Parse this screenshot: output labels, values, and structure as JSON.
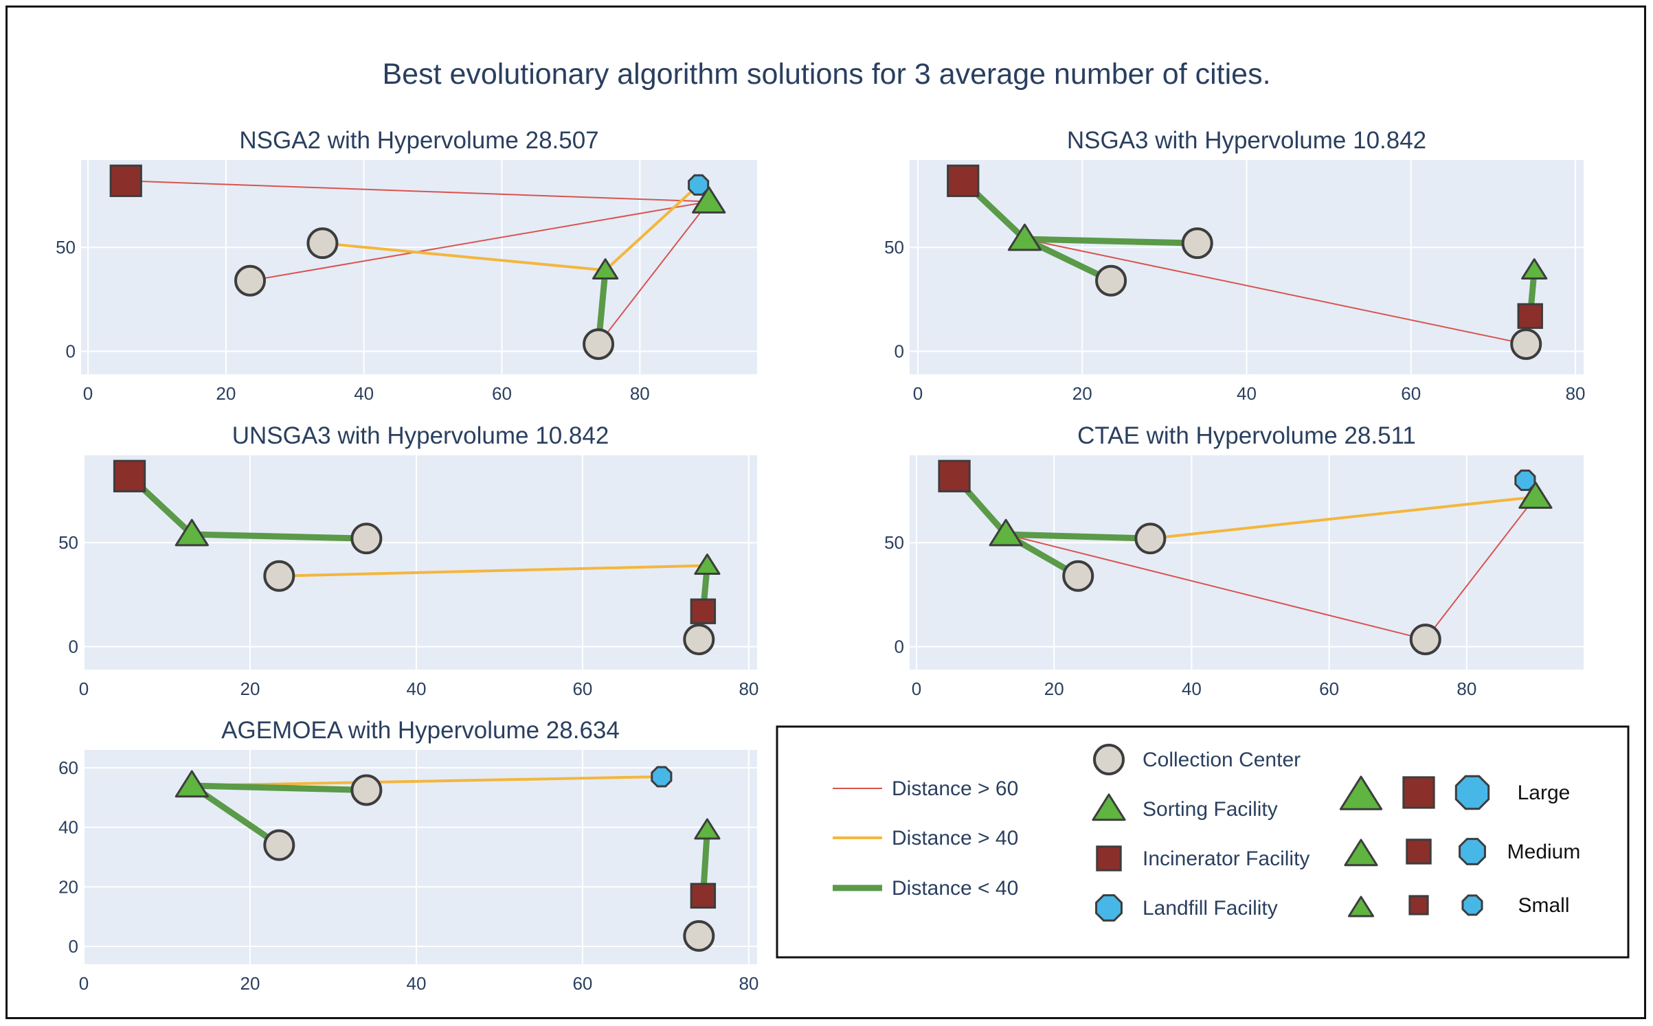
{
  "title": "Best evolutionary algorithm solutions for 3 average number of cities.",
  "colors": {
    "plot_bg": "#e5ecf6",
    "grid": "#ffffff",
    "text": "#2a3f5f",
    "collection": "#d9d5cc",
    "sorting": "#5fb53f",
    "incinerator": "#8b2f2a",
    "landfill": "#47b7e8",
    "dist_gt60": "#d9534f",
    "dist_gt40": "#f4b63c",
    "dist_lt40": "#5a9a48",
    "marker_edge": "#3d3d3d"
  },
  "chart_data": [
    {
      "type": "scatter",
      "title": "NSGA2 with Hypervolume 28.507",
      "xlim": [
        -1,
        97
      ],
      "ylim": [
        -11,
        92
      ],
      "xticks": [
        0,
        20,
        40,
        60,
        80
      ],
      "yticks": [
        0,
        50
      ],
      "grid": true,
      "points": [
        {
          "kind": "incinerator",
          "size": "large",
          "x": 5.5,
          "y": 82
        },
        {
          "kind": "landfill",
          "size": "small",
          "x": 88.5,
          "y": 80
        },
        {
          "kind": "sorting",
          "size": "medium",
          "x": 90,
          "y": 72
        },
        {
          "kind": "collection",
          "x": 34,
          "y": 52
        },
        {
          "kind": "collection",
          "x": 23.5,
          "y": 34
        },
        {
          "kind": "sorting",
          "size": "small",
          "x": 75,
          "y": 39
        },
        {
          "kind": "collection",
          "x": 74,
          "y": 3.5
        }
      ],
      "links": [
        {
          "class": "gt60",
          "from": [
            5.5,
            82
          ],
          "to": [
            90,
            72
          ]
        },
        {
          "class": "gt60",
          "from": [
            23.5,
            34
          ],
          "to": [
            90,
            72
          ]
        },
        {
          "class": "gt60",
          "from": [
            74,
            3.5
          ],
          "to": [
            90,
            72
          ]
        },
        {
          "class": "gt40",
          "from": [
            34,
            52
          ],
          "to": [
            75,
            39
          ]
        },
        {
          "class": "gt40",
          "from": [
            75,
            39
          ],
          "to": [
            88.5,
            80
          ]
        },
        {
          "class": "lt40",
          "from": [
            74,
            3.5
          ],
          "to": [
            75,
            39
          ]
        }
      ]
    },
    {
      "type": "scatter",
      "title": "NSGA3 with Hypervolume 10.842",
      "xlim": [
        -1,
        81
      ],
      "ylim": [
        -11,
        92
      ],
      "xticks": [
        0,
        20,
        40,
        60,
        80
      ],
      "yticks": [
        0,
        50
      ],
      "grid": true,
      "points": [
        {
          "kind": "incinerator",
          "size": "large",
          "x": 5.5,
          "y": 82
        },
        {
          "kind": "sorting",
          "size": "medium",
          "x": 13,
          "y": 54
        },
        {
          "kind": "collection",
          "x": 34,
          "y": 52
        },
        {
          "kind": "collection",
          "x": 23.5,
          "y": 34
        },
        {
          "kind": "sorting",
          "size": "small",
          "x": 75,
          "y": 39
        },
        {
          "kind": "incinerator",
          "size": "medium",
          "x": 74.5,
          "y": 17
        },
        {
          "kind": "collection",
          "x": 74,
          "y": 3.5
        }
      ],
      "links": [
        {
          "class": "gt60",
          "from": [
            13,
            54
          ],
          "to": [
            74,
            3.5
          ]
        },
        {
          "class": "lt40",
          "from": [
            5.5,
            82
          ],
          "to": [
            13,
            54
          ]
        },
        {
          "class": "lt40",
          "from": [
            13,
            54
          ],
          "to": [
            34,
            52
          ]
        },
        {
          "class": "lt40",
          "from": [
            13,
            54
          ],
          "to": [
            23.5,
            34
          ]
        },
        {
          "class": "lt40",
          "from": [
            74.5,
            17
          ],
          "to": [
            75,
            39
          ]
        }
      ]
    },
    {
      "type": "scatter",
      "title": "UNSGA3 with Hypervolume 10.842",
      "xlim": [
        0,
        81
      ],
      "ylim": [
        -11,
        92
      ],
      "xticks": [
        0,
        20,
        40,
        60,
        80
      ],
      "yticks": [
        0,
        50
      ],
      "grid": true,
      "points": [
        {
          "kind": "incinerator",
          "size": "large",
          "x": 5.5,
          "y": 82
        },
        {
          "kind": "sorting",
          "size": "medium",
          "x": 13,
          "y": 54
        },
        {
          "kind": "collection",
          "x": 34,
          "y": 52
        },
        {
          "kind": "collection",
          "x": 23.5,
          "y": 34
        },
        {
          "kind": "sorting",
          "size": "small",
          "x": 75,
          "y": 39
        },
        {
          "kind": "incinerator",
          "size": "medium",
          "x": 74.5,
          "y": 17
        },
        {
          "kind": "collection",
          "x": 74,
          "y": 3.5
        }
      ],
      "links": [
        {
          "class": "gt40",
          "from": [
            23.5,
            34
          ],
          "to": [
            75,
            39
          ]
        },
        {
          "class": "lt40",
          "from": [
            5.5,
            82
          ],
          "to": [
            13,
            54
          ]
        },
        {
          "class": "lt40",
          "from": [
            13,
            54
          ],
          "to": [
            34,
            52
          ]
        },
        {
          "class": "lt40",
          "from": [
            74.5,
            17
          ],
          "to": [
            75,
            39
          ]
        }
      ]
    },
    {
      "type": "scatter",
      "title": "CTAE with Hypervolume 28.511",
      "xlim": [
        -1,
        97
      ],
      "ylim": [
        -11,
        92
      ],
      "xticks": [
        0,
        20,
        40,
        60,
        80
      ],
      "yticks": [
        0,
        50
      ],
      "grid": true,
      "points": [
        {
          "kind": "incinerator",
          "size": "large",
          "x": 5.5,
          "y": 82
        },
        {
          "kind": "landfill",
          "size": "small",
          "x": 88.5,
          "y": 80
        },
        {
          "kind": "sorting",
          "size": "medium",
          "x": 90,
          "y": 72
        },
        {
          "kind": "sorting",
          "size": "medium",
          "x": 13,
          "y": 54
        },
        {
          "kind": "collection",
          "x": 34,
          "y": 52
        },
        {
          "kind": "collection",
          "x": 23.5,
          "y": 34
        },
        {
          "kind": "collection",
          "x": 74,
          "y": 3.5
        }
      ],
      "links": [
        {
          "class": "gt60",
          "from": [
            13,
            54
          ],
          "to": [
            74,
            3.5
          ]
        },
        {
          "class": "gt60",
          "from": [
            74,
            3.5
          ],
          "to": [
            90,
            72
          ]
        },
        {
          "class": "gt40",
          "from": [
            34,
            52
          ],
          "to": [
            90,
            72
          ]
        },
        {
          "class": "lt40",
          "from": [
            5.5,
            82
          ],
          "to": [
            13,
            54
          ]
        },
        {
          "class": "lt40",
          "from": [
            13,
            54
          ],
          "to": [
            34,
            52
          ]
        },
        {
          "class": "lt40",
          "from": [
            13,
            54
          ],
          "to": [
            23.5,
            34
          ]
        }
      ]
    },
    {
      "type": "scatter",
      "title": "AGEMOEA with Hypervolume 28.634",
      "xlim": [
        0,
        81
      ],
      "ylim": [
        -6,
        66
      ],
      "xticks": [
        0,
        20,
        40,
        60,
        80
      ],
      "yticks": [
        0,
        20,
        40,
        60
      ],
      "grid": true,
      "points": [
        {
          "kind": "sorting",
          "size": "medium",
          "x": 13,
          "y": 54
        },
        {
          "kind": "collection",
          "x": 34,
          "y": 52.5
        },
        {
          "kind": "landfill",
          "size": "small",
          "x": 69.5,
          "y": 57
        },
        {
          "kind": "collection",
          "x": 23.5,
          "y": 34
        },
        {
          "kind": "sorting",
          "size": "small",
          "x": 75,
          "y": 39
        },
        {
          "kind": "incinerator",
          "size": "medium",
          "x": 74.5,
          "y": 17
        },
        {
          "kind": "collection",
          "x": 74,
          "y": 3.5
        }
      ],
      "links": [
        {
          "class": "gt40",
          "from": [
            13,
            54
          ],
          "to": [
            69.5,
            57
          ]
        },
        {
          "class": "lt40",
          "from": [
            13,
            54
          ],
          "to": [
            34,
            52.5
          ]
        },
        {
          "class": "lt40",
          "from": [
            13,
            54
          ],
          "to": [
            23.5,
            34
          ]
        },
        {
          "class": "lt40",
          "from": [
            74.5,
            17
          ],
          "to": [
            75,
            39
          ]
        }
      ]
    }
  ],
  "legend": {
    "lines": [
      {
        "label": "Distance > 60",
        "class": "gt60"
      },
      {
        "label": "Distance > 40",
        "class": "gt40"
      },
      {
        "label": "Distance < 40",
        "class": "lt40"
      }
    ],
    "facilities": [
      {
        "label": "Collection Center",
        "kind": "collection"
      },
      {
        "label": "Sorting Facility",
        "kind": "sorting"
      },
      {
        "label": "Incinerator Facility",
        "kind": "incinerator"
      },
      {
        "label": "Landfill Facility",
        "kind": "landfill"
      }
    ],
    "sizes": [
      {
        "label": "Large",
        "size": "large"
      },
      {
        "label": "Medium",
        "size": "medium"
      },
      {
        "label": "Small",
        "size": "small"
      }
    ]
  }
}
